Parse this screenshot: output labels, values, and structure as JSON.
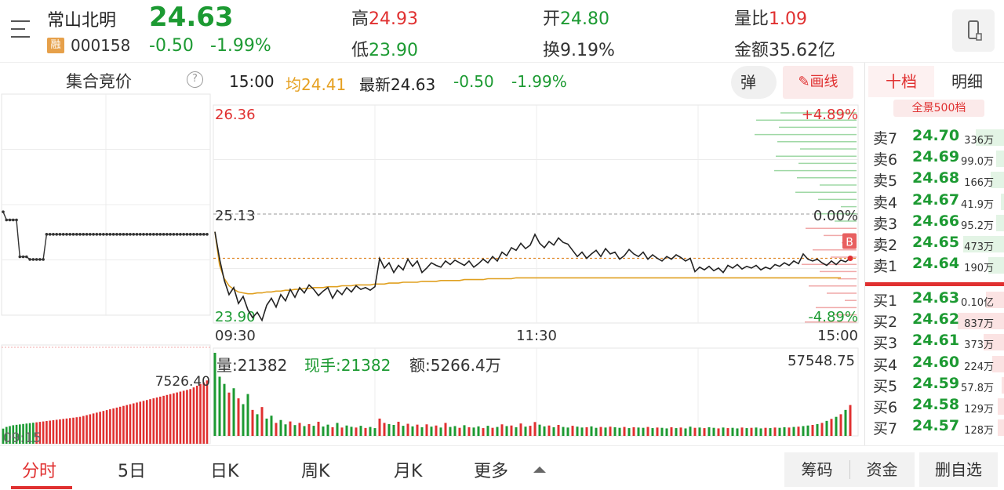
{
  "header": {
    "name": "常山北明",
    "price": "24.63",
    "rong": "融",
    "code": "000158",
    "change": "-0.50",
    "change_pct": "-1.99%",
    "high_label": "高",
    "high": "24.93",
    "low_label": "低",
    "low": "23.90",
    "open_label": "开",
    "open": "24.80",
    "turnover_label": "换",
    "turnover": "9.19%",
    "vol_ratio_label": "量比",
    "vol_ratio": "1.09",
    "amount_label": "金额",
    "amount": "35.62亿"
  },
  "auction": {
    "title": "集合竞价",
    "help": "?",
    "vol_label": "7526.40",
    "time_label": "09:15"
  },
  "infobar": {
    "time": "15:00",
    "avg": "均24.41",
    "latest": "最新24.63",
    "chg": "-0.50",
    "pct": "-1.99%",
    "dan": "弹",
    "draw": "画线"
  },
  "volbar": {
    "vol": "量:21382",
    "now": "现手:21382",
    "amount": "额:5266.4万",
    "max": "57548.75"
  },
  "chart_data": {
    "type": "line",
    "ylim": [
      23.9,
      26.36
    ],
    "prev_close": 25.13,
    "y_labels_left": [
      "26.36",
      "25.13",
      "23.90"
    ],
    "y_labels_right": [
      "+4.89%",
      "0.00%",
      "-4.89%"
    ],
    "x_labels": [
      "09:30",
      "11:30",
      "15:00"
    ],
    "badge": "B",
    "price_points": [
      24.93,
      24.62,
      24.38,
      24.22,
      24.3,
      24.12,
      24.2,
      24.05,
      23.96,
      24.02,
      23.93,
      24.1,
      24.18,
      24.08,
      24.22,
      24.15,
      24.28,
      24.19,
      24.3,
      24.24,
      24.33,
      24.28,
      24.21,
      24.26,
      24.3,
      24.18,
      24.27,
      24.22,
      24.3,
      24.25,
      24.32,
      24.28,
      24.3,
      24.27,
      24.31,
      24.63,
      24.52,
      24.58,
      24.47,
      24.55,
      24.5,
      24.62,
      24.54,
      24.6,
      24.47,
      24.52,
      24.58,
      24.55,
      24.53,
      24.6,
      24.56,
      24.61,
      24.58,
      24.55,
      24.6,
      24.53,
      24.57,
      24.62,
      24.58,
      24.65,
      24.6,
      24.7,
      24.66,
      24.75,
      24.72,
      24.8,
      24.74,
      24.78,
      24.9,
      24.8,
      24.75,
      24.82,
      24.78,
      24.86,
      24.81,
      24.79,
      24.72,
      24.65,
      24.7,
      24.63,
      24.68,
      24.72,
      24.65,
      24.74,
      24.68,
      24.7,
      24.62,
      24.66,
      24.73,
      24.68,
      24.65,
      24.7,
      24.62,
      24.67,
      24.63,
      24.6,
      24.65,
      24.62,
      24.67,
      24.64,
      24.6,
      24.63,
      24.48,
      24.53,
      24.5,
      24.54,
      24.49,
      24.52,
      24.47,
      24.55,
      24.52,
      24.56,
      24.51,
      24.54,
      24.52,
      24.55,
      24.5,
      24.53,
      24.51,
      24.56,
      24.54,
      24.58,
      24.55,
      24.6,
      24.57,
      24.68,
      24.62,
      24.6,
      24.62,
      24.58,
      24.55,
      24.6,
      24.56,
      24.61,
      24.59,
      24.63
    ],
    "avg_points": [
      24.93,
      24.55,
      24.4,
      24.32,
      24.28,
      24.25,
      24.24,
      24.23,
      24.23,
      24.24,
      24.24,
      24.25,
      24.25,
      24.26,
      24.26,
      24.27,
      24.27,
      24.28,
      24.28,
      24.29,
      24.29,
      24.3,
      24.3,
      24.3,
      24.31,
      24.31,
      24.31,
      24.32,
      24.32,
      24.32,
      24.33,
      24.33,
      24.33,
      24.33,
      24.34,
      24.34,
      24.34,
      24.35,
      24.35,
      24.35,
      24.36,
      24.36,
      24.36,
      24.36,
      24.37,
      24.37,
      24.37,
      24.37,
      24.38,
      24.38,
      24.38,
      24.38,
      24.38,
      24.39,
      24.39,
      24.39,
      24.39,
      24.39,
      24.4,
      24.4,
      24.4,
      24.4,
      24.4,
      24.4,
      24.41,
      24.41,
      24.41,
      24.41,
      24.41,
      24.41,
      24.41,
      24.41,
      24.41,
      24.41,
      24.41,
      24.41,
      24.41,
      24.41,
      24.41,
      24.41,
      24.41,
      24.41,
      24.41,
      24.41,
      24.41,
      24.41,
      24.41,
      24.41,
      24.41,
      24.41,
      24.41,
      24.41,
      24.41,
      24.41,
      24.41,
      24.41,
      24.41,
      24.41,
      24.41,
      24.41,
      24.41,
      24.41,
      24.41,
      24.41,
      24.41,
      24.41,
      24.41,
      24.41,
      24.41,
      24.41,
      24.41,
      24.41,
      24.41,
      24.41,
      24.41,
      24.41,
      24.41,
      24.41,
      24.41,
      24.41,
      24.41,
      24.41,
      24.41,
      24.41,
      24.41,
      24.41,
      24.41,
      24.41,
      24.41,
      24.41,
      24.41,
      24.41,
      24.41,
      24.41
    ],
    "volumes": [
      57548,
      41000,
      36000,
      30000,
      33000,
      26000,
      22000,
      29000,
      18000,
      15000,
      20000,
      12000,
      14000,
      9000,
      11000,
      8000,
      10000,
      7500,
      9000,
      6800,
      8200,
      7000,
      9800,
      6500,
      7800,
      6000,
      9000,
      5800,
      7200,
      6300,
      5800,
      7000,
      5500,
      6200,
      5400,
      12000,
      9000,
      8200,
      7600,
      9800,
      7000,
      8400,
      6600,
      7800,
      6000,
      8000,
      6400,
      7200,
      5800,
      9000,
      6200,
      6800,
      5600,
      7400,
      6000,
      5800,
      6600,
      5400,
      7000,
      5600,
      6200,
      8000,
      6800,
      7200,
      6000,
      8600,
      6400,
      7000,
      9600,
      7800,
      6600,
      7200,
      6000,
      7600,
      6200,
      5800,
      7000,
      6400,
      5800,
      6000,
      6600,
      5600,
      6200,
      5800,
      6400,
      6000,
      5600,
      6200,
      5400,
      6000,
      5800,
      5600,
      6200,
      5400,
      5800,
      5600,
      5200,
      6000,
      5400,
      5800,
      5200,
      6400,
      5600,
      5800,
      5400,
      6000,
      5600,
      5200,
      5800,
      5400,
      5600,
      5200,
      5800,
      5400,
      5600,
      5800,
      5200,
      5600,
      5400,
      5800,
      5600,
      6000,
      5800,
      6200,
      6400,
      6800,
      7200,
      7600,
      8200,
      9000,
      10400,
      11800,
      13200,
      15000,
      18000,
      21382
    ],
    "vol_colors": [
      "g",
      "g",
      "g",
      "r",
      "g",
      "r",
      "g",
      "g",
      "r",
      "g",
      "r",
      "g",
      "g",
      "r",
      "g",
      "g",
      "r",
      "g",
      "r",
      "g",
      "r",
      "g",
      "r",
      "g",
      "g",
      "r",
      "g",
      "r",
      "g",
      "g",
      "r",
      "g",
      "r",
      "g",
      "g",
      "r",
      "r",
      "g",
      "g",
      "r",
      "g",
      "r",
      "g",
      "r",
      "g",
      "r",
      "g",
      "r",
      "g",
      "r",
      "g",
      "g",
      "r",
      "g",
      "r",
      "g",
      "g",
      "r",
      "g",
      "r",
      "g",
      "r",
      "g",
      "r",
      "g",
      "r",
      "g",
      "r",
      "r",
      "g",
      "g",
      "r",
      "g",
      "r",
      "g",
      "g",
      "r",
      "g",
      "g",
      "r",
      "g",
      "g",
      "r",
      "g",
      "r",
      "g",
      "g",
      "r",
      "g",
      "r",
      "g",
      "g",
      "r",
      "g",
      "r",
      "g",
      "g",
      "r",
      "g",
      "r",
      "g",
      "g",
      "r",
      "g",
      "r",
      "g",
      "g",
      "r",
      "g",
      "r",
      "g",
      "g",
      "r",
      "g",
      "r",
      "g",
      "g",
      "r",
      "g",
      "r",
      "g",
      "g",
      "r",
      "g",
      "r",
      "g",
      "g",
      "r",
      "g",
      "r",
      "g",
      "r",
      "g",
      "r",
      "g",
      "r",
      "g",
      "r"
    ]
  },
  "auction_chart": {
    "prices": [
      25.05,
      24.96,
      24.96,
      24.96,
      24.96,
      24.55,
      24.55,
      24.55,
      24.52,
      24.52,
      24.52,
      24.52,
      24.52,
      24.8,
      24.8,
      24.8,
      24.8,
      24.8,
      24.8,
      24.8,
      24.8,
      24.8,
      24.8,
      24.8,
      24.8,
      24.8,
      24.8,
      24.8,
      24.8,
      24.8,
      24.8,
      24.8,
      24.8,
      24.8,
      24.8,
      24.8,
      24.8,
      24.8,
      24.8,
      24.8,
      24.8,
      24.8,
      24.8,
      24.8,
      24.8,
      24.8,
      24.8,
      24.8,
      24.8,
      24.8,
      24.8,
      24.8,
      24.8,
      24.8,
      24.8,
      24.8,
      24.8,
      24.8,
      24.8,
      24.8,
      24.8,
      24.8
    ],
    "volumes": [
      1800,
      2000,
      2100,
      2200,
      2250,
      2300,
      2350,
      2400,
      2450,
      2500,
      2550,
      2600,
      2650,
      2700,
      2750,
      2800,
      2850,
      2900,
      2950,
      3000,
      3050,
      3100,
      3150,
      3200,
      3300,
      3400,
      3500,
      3600,
      3700,
      3800,
      3900,
      4000,
      4100,
      4200,
      4300,
      4400,
      4500,
      4600,
      4700,
      4800,
      4900,
      5000,
      5100,
      5200,
      5300,
      5400,
      5500,
      5600,
      5700,
      5800,
      5900,
      6000,
      6100,
      6200,
      6300,
      6400,
      6500,
      6700,
      6900,
      7100,
      7300,
      7526
    ]
  },
  "order_book": {
    "tab_active": "十档",
    "tab_other": "明细",
    "pill": "全景500档",
    "asks": [
      {
        "label": "卖7",
        "price": "24.70",
        "vol": "336万",
        "w": 0.62
      },
      {
        "label": "卖6",
        "price": "24.69",
        "vol": "99.0万",
        "w": 0.18
      },
      {
        "label": "卖5",
        "price": "24.68",
        "vol": "166万",
        "w": 0.3
      },
      {
        "label": "卖4",
        "price": "24.67",
        "vol": "41.9万",
        "w": 0.08
      },
      {
        "label": "卖3",
        "price": "24.66",
        "vol": "95.2万",
        "w": 0.18
      },
      {
        "label": "卖2",
        "price": "24.65",
        "vol": "473万",
        "w": 0.88
      },
      {
        "label": "卖1",
        "price": "24.64",
        "vol": "190万",
        "w": 0.35
      }
    ],
    "bids": [
      {
        "label": "买1",
        "price": "24.63",
        "vol": "0.10亿",
        "w": 0.4
      },
      {
        "label": "买2",
        "price": "24.62",
        "vol": "837万",
        "w": 1.0
      },
      {
        "label": "买3",
        "price": "24.61",
        "vol": "373万",
        "w": 0.45
      },
      {
        "label": "买4",
        "price": "24.60",
        "vol": "224万",
        "w": 0.27
      },
      {
        "label": "买5",
        "price": "24.59",
        "vol": "57.8万",
        "w": 0.07
      },
      {
        "label": "买6",
        "price": "24.58",
        "vol": "129万",
        "w": 0.15
      },
      {
        "label": "买7",
        "price": "24.57",
        "vol": "128万",
        "w": 0.15
      }
    ]
  },
  "footer": {
    "tabs": [
      "分时",
      "5日",
      "日K",
      "周K",
      "月K",
      "更多"
    ],
    "btn_chips": "筹码",
    "btn_funds": "资金",
    "btn_remove": "删自选"
  }
}
